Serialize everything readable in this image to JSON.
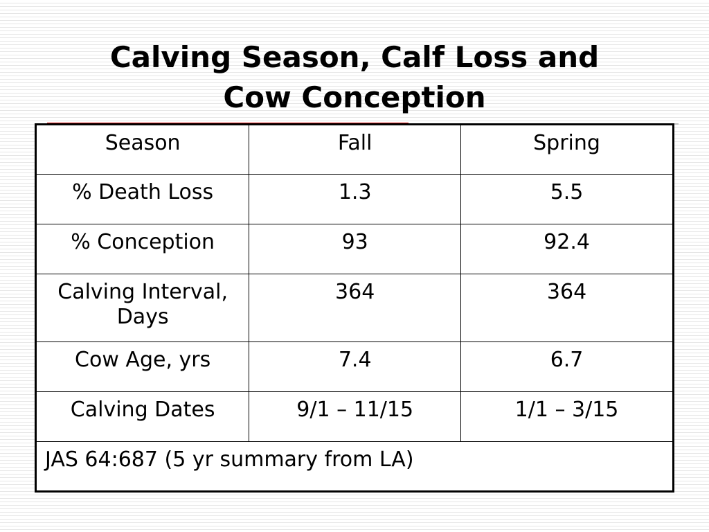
{
  "slide": {
    "title_line1": "Calving Season, Calf Loss and",
    "title_line2": "Cow Conception"
  },
  "table": {
    "header": [
      "Season",
      "Fall",
      "Spring"
    ],
    "rows": [
      [
        "% Death Loss",
        "1.3",
        "5.5"
      ],
      [
        "% Conception",
        "93",
        "92.4"
      ],
      [
        "Calving Interval, Days",
        "364",
        "364"
      ],
      [
        "Cow Age, yrs",
        "7.4",
        "6.7"
      ],
      [
        "Calving Dates",
        "9/1 – 11/15",
        "1/1 – 3/15"
      ]
    ],
    "footnote": "JAS 64:687 (5 yr summary from LA)"
  },
  "colors": {
    "accent_rule": "#cc0000",
    "table_border": "#000000",
    "background_stripe": "#e6e6e6"
  }
}
